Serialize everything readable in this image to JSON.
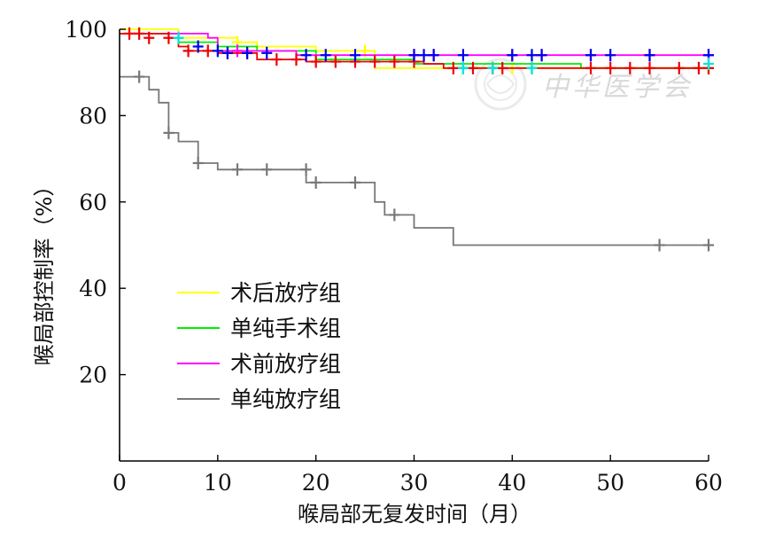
{
  "chart_data": {
    "type": "line",
    "title": "",
    "xlabel": "喉局部无复发时间（月）",
    "ylabel": "喉局部控制率（%）",
    "xlim": [
      0,
      60
    ],
    "ylim": [
      0,
      100
    ],
    "xticks": [
      0,
      10,
      20,
      30,
      40,
      50,
      60
    ],
    "yticks": [
      20,
      40,
      60,
      80,
      100
    ],
    "grid": false,
    "legend_position": "lower-left",
    "series": [
      {
        "name": "术后放疗组",
        "color": "#ffff00",
        "steps": [
          [
            0,
            100
          ],
          [
            6,
            100
          ],
          [
            6,
            98
          ],
          [
            12,
            98
          ],
          [
            12,
            97
          ],
          [
            14,
            97
          ],
          [
            14,
            96
          ],
          [
            20,
            96
          ],
          [
            20,
            95
          ],
          [
            26,
            95
          ],
          [
            26,
            91
          ],
          [
            60,
            91
          ]
        ],
        "censors": [
          [
            12,
            97
          ],
          [
            25,
            95
          ],
          [
            40,
            91
          ],
          [
            60,
            91
          ]
        ]
      },
      {
        "name": "单纯手术组",
        "color": "#00ee00",
        "steps": [
          [
            0,
            99
          ],
          [
            6,
            99
          ],
          [
            6,
            97
          ],
          [
            10,
            97
          ],
          [
            10,
            96
          ],
          [
            14,
            96
          ],
          [
            14,
            95
          ],
          [
            20,
            95
          ],
          [
            20,
            93
          ],
          [
            30,
            93
          ],
          [
            30,
            92
          ],
          [
            47,
            92
          ],
          [
            47,
            91
          ],
          [
            60,
            91
          ]
        ],
        "censors": [
          [
            6,
            98
          ],
          [
            35,
            91
          ],
          [
            38,
            91
          ],
          [
            42,
            91
          ],
          [
            60,
            91
          ]
        ]
      },
      {
        "name": "术前放疗组",
        "color": "#ff00ff",
        "steps": [
          [
            0,
            99
          ],
          [
            9,
            99
          ],
          [
            9,
            98
          ],
          [
            10,
            98
          ],
          [
            10,
            95
          ],
          [
            18,
            95
          ],
          [
            18,
            94
          ],
          [
            60,
            94
          ]
        ],
        "censors": [
          [
            12,
            95
          ],
          [
            30,
            94
          ],
          [
            32,
            94
          ],
          [
            40,
            94
          ],
          [
            43,
            94
          ],
          [
            48,
            94
          ],
          [
            54,
            94
          ],
          [
            60,
            94
          ]
        ]
      },
      {
        "name": "单纯放疗组",
        "color": "#777777",
        "steps": [
          [
            0,
            89
          ],
          [
            3,
            89
          ],
          [
            3,
            86
          ],
          [
            4,
            86
          ],
          [
            4,
            83
          ],
          [
            5,
            83
          ],
          [
            5,
            76
          ],
          [
            6,
            76
          ],
          [
            6,
            74
          ],
          [
            8,
            74
          ],
          [
            8,
            69
          ],
          [
            10,
            69
          ],
          [
            10,
            67.5
          ],
          [
            19,
            67.5
          ],
          [
            19,
            64.5
          ],
          [
            26,
            64.5
          ],
          [
            26,
            60
          ],
          [
            27,
            60
          ],
          [
            27,
            57
          ],
          [
            30,
            57
          ],
          [
            30,
            54
          ],
          [
            34,
            54
          ],
          [
            34,
            50
          ],
          [
            60,
            50
          ]
        ],
        "censors": [
          [
            2,
            89
          ],
          [
            5,
            76
          ],
          [
            8,
            69
          ],
          [
            12,
            67.5
          ],
          [
            15,
            67.5
          ],
          [
            19,
            67.5
          ],
          [
            20,
            64.5
          ],
          [
            24,
            64.5
          ],
          [
            28,
            57
          ],
          [
            55,
            50
          ],
          [
            60,
            50
          ]
        ]
      },
      {
        "color": "#ee0000",
        "steps": [
          [
            0,
            99
          ],
          [
            5,
            99
          ],
          [
            5,
            98
          ],
          [
            6,
            98
          ],
          [
            6,
            96
          ],
          [
            7,
            96
          ],
          [
            7,
            95
          ],
          [
            10,
            95
          ],
          [
            10,
            94.5
          ],
          [
            14,
            94.5
          ],
          [
            14,
            93
          ],
          [
            19,
            93
          ],
          [
            19,
            92.5
          ],
          [
            31,
            92.5
          ],
          [
            31,
            92
          ],
          [
            33,
            92
          ],
          [
            33,
            91
          ],
          [
            60,
            91
          ]
        ],
        "censors": [
          [
            1,
            99
          ],
          [
            2,
            99
          ],
          [
            3,
            98
          ],
          [
            5,
            98
          ],
          [
            7,
            95
          ],
          [
            9,
            95
          ],
          [
            11,
            94.5
          ],
          [
            13,
            94.5
          ],
          [
            16,
            93
          ],
          [
            18,
            93
          ],
          [
            20,
            92.5
          ],
          [
            22,
            92.5
          ],
          [
            24,
            92.5
          ],
          [
            26,
            92.5
          ],
          [
            28,
            92.5
          ],
          [
            30,
            92.5
          ],
          [
            34,
            91
          ],
          [
            36,
            91
          ],
          [
            38,
            91
          ],
          [
            39,
            91
          ],
          [
            48,
            91
          ],
          [
            50,
            91
          ],
          [
            52,
            91
          ],
          [
            54,
            91
          ],
          [
            57,
            91
          ],
          [
            59,
            91
          ],
          [
            60,
            91
          ]
        ]
      },
      {
        "color": "#0000ee",
        "steps": [],
        "censors": [
          [
            8,
            96
          ],
          [
            10,
            95
          ],
          [
            11,
            94.5
          ],
          [
            13,
            94.5
          ],
          [
            15,
            94.5
          ],
          [
            19,
            94
          ],
          [
            21,
            94
          ],
          [
            24,
            94
          ],
          [
            30,
            94
          ],
          [
            31,
            94
          ],
          [
            32,
            94
          ],
          [
            35,
            94
          ],
          [
            40,
            94
          ],
          [
            42,
            94
          ],
          [
            43,
            94
          ],
          [
            48,
            94
          ],
          [
            50,
            94
          ],
          [
            54,
            94
          ],
          [
            60,
            94
          ]
        ]
      },
      {
        "color": "#00e5e5",
        "steps": [],
        "censors": [
          [
            6,
            98
          ],
          [
            35,
            91
          ],
          [
            38,
            91
          ],
          [
            42,
            91
          ],
          [
            60,
            92
          ]
        ]
      }
    ]
  },
  "watermark": {
    "text": "中华医学会"
  }
}
